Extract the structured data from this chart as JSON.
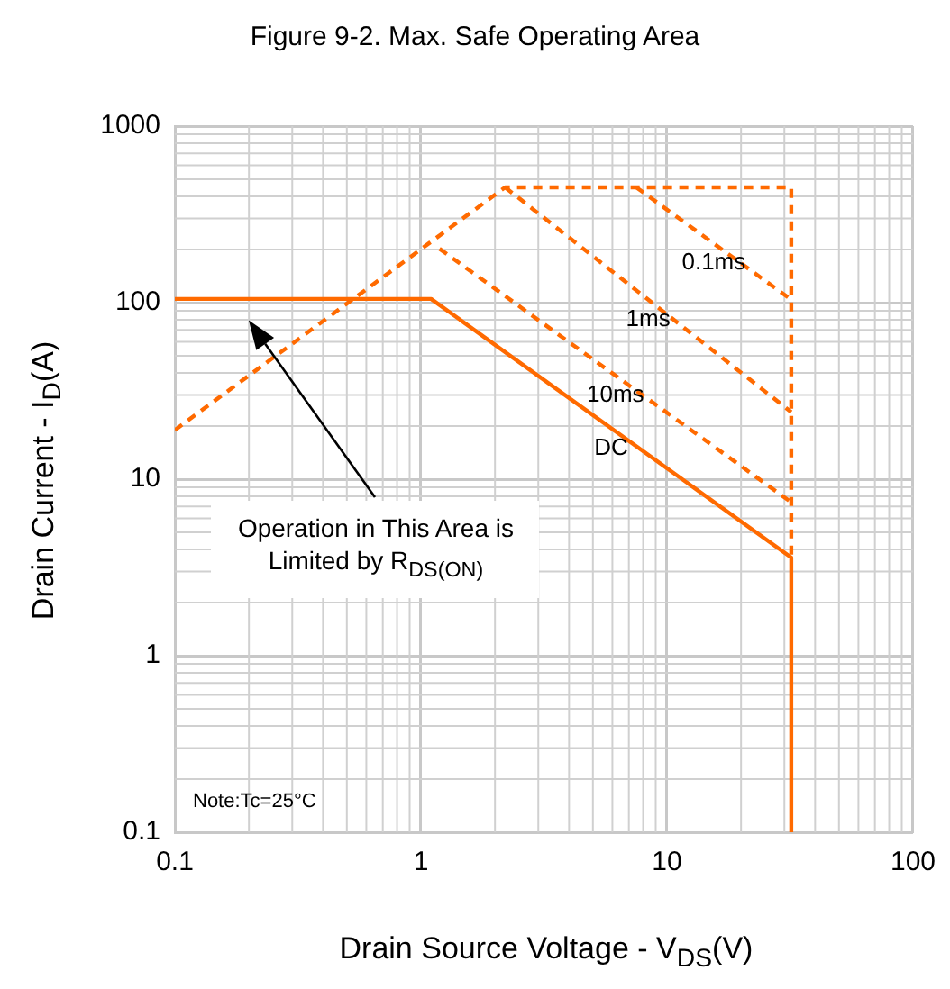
{
  "chart_data": {
    "type": "line",
    "title": "Figure 9-2. Max. Safe Operating Area",
    "xlabel": "Drain Source Voltage - V$_{DS}$(V)",
    "ylabel": "Drain Current - I$_{D}$(A)",
    "log": "xy",
    "xlim": [
      0.1,
      100
    ],
    "ylim": [
      0.1,
      1000
    ],
    "xticks": [
      0.1,
      1,
      10,
      100
    ],
    "yticks": [
      0.1,
      1,
      10,
      100,
      1000
    ],
    "grid": true,
    "legend": false,
    "marker": "none",
    "annotations": [
      "Operation in This Area is Limited by R$_{DS(ON)}$",
      "Note:Tc=25°C"
    ],
    "series": [
      {
        "color": "#ff6a00",
        "line_style": "dashed",
        "x": [
          0.1,
          2.2,
          32,
          32
        ],
        "values": [
          19,
          450,
          450,
          3.6
        ]
      },
      {
        "name": "0.1ms",
        "color": "#ff6a00",
        "line_style": "dashed",
        "x": [
          7.5,
          32
        ],
        "values": [
          450,
          104
        ]
      },
      {
        "name": "1ms",
        "color": "#ff6a00",
        "line_style": "dashed",
        "x": [
          2.2,
          32
        ],
        "values": [
          450,
          24
        ]
      },
      {
        "name": "10ms",
        "color": "#ff6a00",
        "line_style": "dashed",
        "x": [
          1.19,
          32
        ],
        "values": [
          202,
          7.4
        ]
      },
      {
        "name": "DC",
        "color": "#ff6a00",
        "line_style": "solid",
        "x": [
          0.1,
          1.1,
          32,
          32
        ],
        "values": [
          105,
          105,
          3.6,
          0.1
        ]
      }
    ]
  }
}
